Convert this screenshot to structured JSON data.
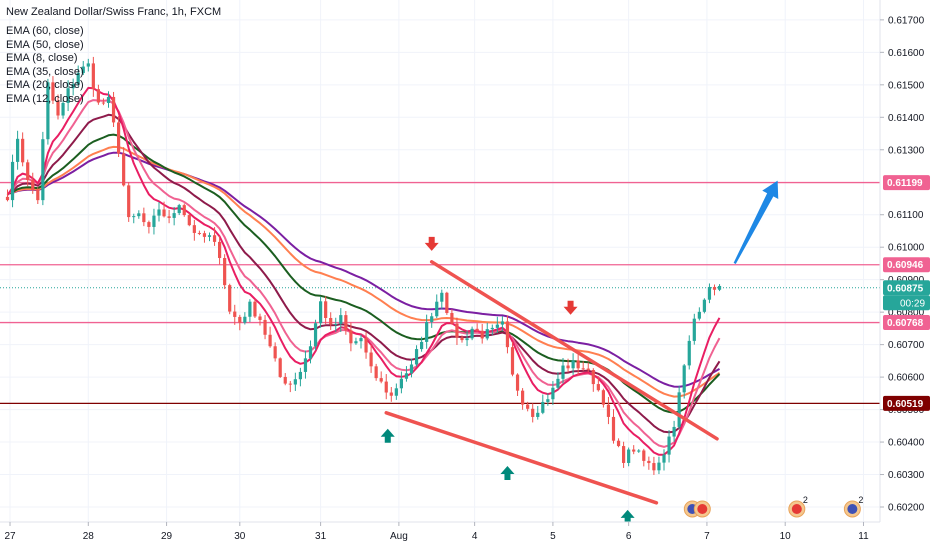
{
  "chart_data": {
    "type": "candlestick",
    "title": "New Zealand Dollar/Swiss Franc, 1h, FXCM",
    "indicators": [
      {
        "label": "EMA (60, close)",
        "color": "#7b1fa2"
      },
      {
        "label": "EMA (50, close)",
        "color": "#ff7f50"
      },
      {
        "label": "EMA (8, close)",
        "color": "#e91e63"
      },
      {
        "label": "EMA (35, close)",
        "color": "#1b5e20"
      },
      {
        "label": "EMA (20, close)",
        "color": "#8e1b4b"
      },
      {
        "label": "EMA (12, close)",
        "color": "#f06292"
      }
    ],
    "y_ticks": [
      "0.61700",
      "0.61600",
      "0.61500",
      "0.61400",
      "0.61300",
      "0.61100",
      "0.61000",
      "0.60900",
      "0.60800",
      "0.60700",
      "0.60600",
      "0.60500",
      "0.60400",
      "0.60300",
      "0.60200"
    ],
    "x_ticks": [
      {
        "label": "27",
        "i": 0.5
      },
      {
        "label": "28",
        "i": 16
      },
      {
        "label": "29",
        "i": 31.5
      },
      {
        "label": "30",
        "i": 46
      },
      {
        "label": "31",
        "i": 62
      },
      {
        "label": "Aug",
        "i": 77.5
      },
      {
        "label": "4",
        "i": 92.5
      },
      {
        "label": "5",
        "i": 108
      },
      {
        "label": "6",
        "i": 123
      },
      {
        "label": "7",
        "i": 138.5
      },
      {
        "label": "10",
        "i": 154
      },
      {
        "label": "11",
        "i": 169.5
      }
    ],
    "levels": [
      {
        "value": 0.61199,
        "label": "0.61199",
        "color": "#f06292"
      },
      {
        "value": 0.60946,
        "label": "0.60946",
        "color": "#f06292"
      },
      {
        "value": 0.60875,
        "label": "0.60875",
        "color": "#26a69a",
        "dotted": true
      },
      {
        "value": 0.60768,
        "label": "0.60768",
        "color": "#f06292"
      },
      {
        "value": 0.60519,
        "label": "0.60519",
        "color": "#7f0000"
      }
    ],
    "countdown": "00:29",
    "bar_count": 142,
    "anchors": [
      [
        0,
        0.6116
      ],
      [
        2,
        0.6134
      ],
      [
        4,
        0.612
      ],
      [
        6,
        0.6115
      ],
      [
        8,
        0.615
      ],
      [
        10,
        0.614
      ],
      [
        12,
        0.6148
      ],
      [
        14,
        0.6154
      ],
      [
        16,
        0.6156
      ],
      [
        18,
        0.6144
      ],
      [
        20,
        0.6145
      ],
      [
        22,
        0.613
      ],
      [
        24,
        0.6108
      ],
      [
        26,
        0.611
      ],
      [
        28,
        0.6105
      ],
      [
        30,
        0.6112
      ],
      [
        32,
        0.6108
      ],
      [
        34,
        0.6114
      ],
      [
        36,
        0.6107
      ],
      [
        38,
        0.6103
      ],
      [
        40,
        0.6103
      ],
      [
        42,
        0.6098
      ],
      [
        44,
        0.608
      ],
      [
        46,
        0.6077
      ],
      [
        48,
        0.6082
      ],
      [
        50,
        0.6078
      ],
      [
        52,
        0.6069
      ],
      [
        54,
        0.606
      ],
      [
        56,
        0.6058
      ],
      [
        58,
        0.6062
      ],
      [
        60,
        0.607
      ],
      [
        62,
        0.6083
      ],
      [
        64,
        0.6075
      ],
      [
        66,
        0.6078
      ],
      [
        68,
        0.607
      ],
      [
        70,
        0.6072
      ],
      [
        72,
        0.6062
      ],
      [
        74,
        0.6058
      ],
      [
        76,
        0.6054
      ],
      [
        78,
        0.606
      ],
      [
        80,
        0.6063
      ],
      [
        82,
        0.6072
      ],
      [
        84,
        0.608
      ],
      [
        86,
        0.6087
      ],
      [
        88,
        0.6075
      ],
      [
        90,
        0.6071
      ],
      [
        92,
        0.6075
      ],
      [
        94,
        0.6073
      ],
      [
        96,
        0.6074
      ],
      [
        98,
        0.6076
      ],
      [
        100,
        0.606
      ],
      [
        102,
        0.6053
      ],
      [
        104,
        0.6049
      ],
      [
        106,
        0.6052
      ],
      [
        108,
        0.6056
      ],
      [
        110,
        0.6063
      ],
      [
        112,
        0.6064
      ],
      [
        114,
        0.6063
      ],
      [
        116,
        0.6059
      ],
      [
        118,
        0.6053
      ],
      [
        120,
        0.604
      ],
      [
        122,
        0.6035
      ],
      [
        124,
        0.6038
      ],
      [
        126,
        0.6034
      ],
      [
        128,
        0.6032
      ],
      [
        130,
        0.6037
      ],
      [
        132,
        0.6046
      ],
      [
        134,
        0.6063
      ],
      [
        136,
        0.6078
      ],
      [
        138,
        0.6085
      ],
      [
        140,
        0.6088
      ],
      [
        141,
        0.60875
      ]
    ],
    "ema_periods": [
      60,
      50,
      35,
      20,
      12,
      8
    ],
    "annotations": {
      "down_arrows": [
        {
          "i": 84,
          "v": 0.60995
        },
        {
          "i": 111.5,
          "v": 0.60798
        }
      ],
      "up_arrows": [
        {
          "i": 75.3,
          "v": 0.60435
        },
        {
          "i": 99,
          "v": 0.6032
        },
        {
          "i": 122.8,
          "v": 0.60185
        }
      ],
      "blue_arrow": {
        "from": [
          144,
          0.6095
        ],
        "to": [
          152.5,
          0.61205
        ]
      },
      "channel": {
        "upper": [
          [
            84,
            0.60955
          ],
          [
            140.5,
            0.6041
          ]
        ],
        "lower": [
          [
            75,
            0.6049
          ],
          [
            128.5,
            0.60213
          ]
        ]
      },
      "events": [
        {
          "i": 136.2,
          "badge": ""
        },
        {
          "i": 156.3,
          "badge": "2"
        },
        {
          "i": 167.3,
          "badge": "2"
        }
      ]
    },
    "y_range": [
      0.6016,
      0.61755
    ],
    "up_color": "#26a69a",
    "down_color": "#ef5350"
  }
}
